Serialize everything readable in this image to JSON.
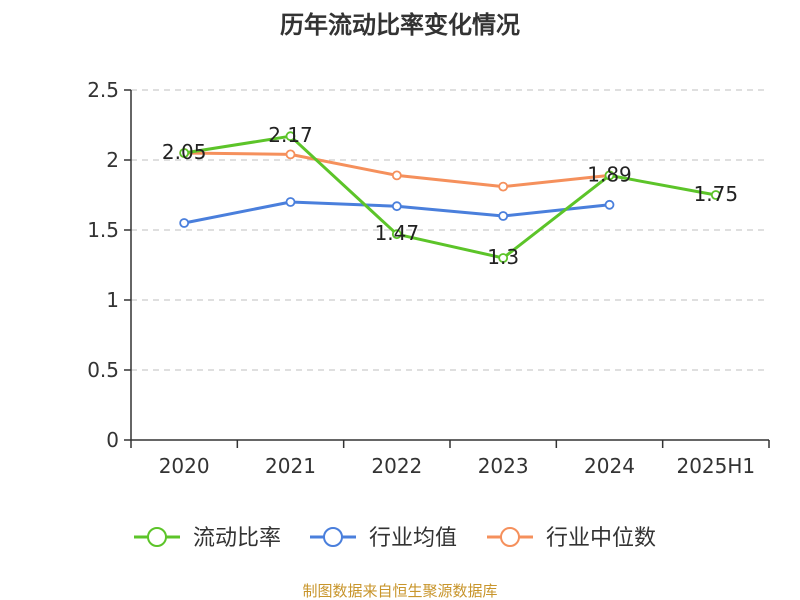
{
  "chart_data": {
    "type": "line",
    "title": "历年流动比率变化情况",
    "categories": [
      "2020",
      "2021",
      "2022",
      "2023",
      "2024",
      "2025H1"
    ],
    "ylim": [
      0,
      2.5
    ],
    "yticks": [
      "0",
      "0.5",
      "1",
      "1.5",
      "2",
      "2.5"
    ],
    "grid": true,
    "legend_position": "bottom",
    "series": [
      {
        "name": "流动比率",
        "color": "#5cc429",
        "values": [
          2.05,
          2.17,
          1.47,
          1.3,
          1.89,
          1.75
        ],
        "labels": [
          "2.05",
          "2.17",
          "1.47",
          "1.3",
          "1.89",
          "1.75"
        ]
      },
      {
        "name": "行业均值",
        "color": "#4a7fdc",
        "values": [
          1.55,
          1.7,
          1.67,
          1.6,
          1.68,
          null
        ]
      },
      {
        "name": "行业中位数",
        "color": "#f5905c",
        "values": [
          2.05,
          2.04,
          1.89,
          1.81,
          1.89,
          null
        ]
      }
    ],
    "source": "制图数据来自恒生聚源数据库"
  }
}
